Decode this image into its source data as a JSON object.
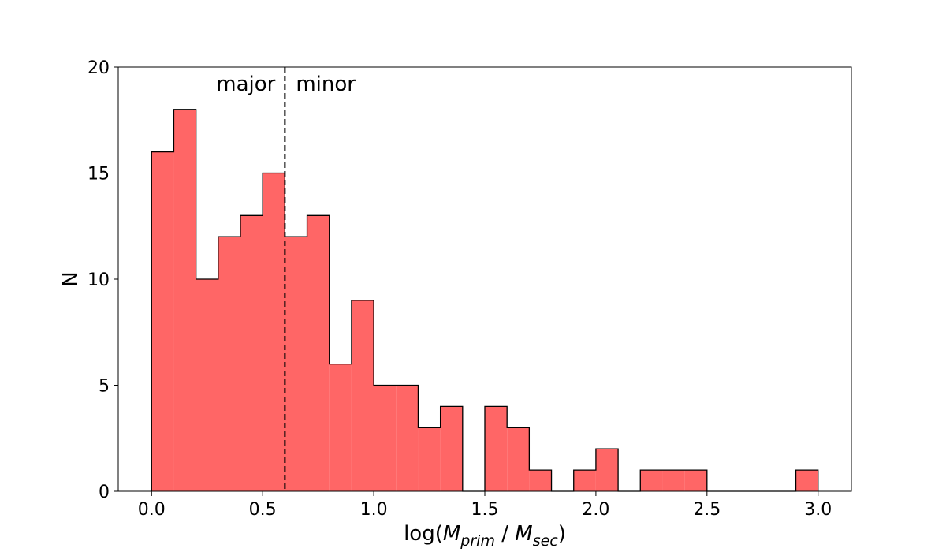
{
  "chart_data": {
    "type": "bar",
    "histogram": true,
    "bin_edges": [
      0.0,
      0.1,
      0.2,
      0.3,
      0.4,
      0.5,
      0.6,
      0.7,
      0.8,
      0.9,
      1.0,
      1.1,
      1.2,
      1.3,
      1.4,
      1.5,
      1.6,
      1.7,
      1.8,
      1.9,
      2.0,
      2.1,
      2.2,
      2.3,
      2.4,
      2.5,
      2.6,
      2.7,
      2.8,
      2.9,
      3.0
    ],
    "values": [
      16,
      18,
      10,
      12,
      13,
      15,
      12,
      13,
      6,
      9,
      5,
      5,
      3,
      4,
      0,
      4,
      3,
      1,
      0,
      1,
      2,
      0,
      1,
      1,
      1,
      0,
      0,
      0,
      0,
      1
    ],
    "xlim": [
      -0.15,
      3.15
    ],
    "ylim": [
      0,
      20
    ],
    "xticks": [
      0.0,
      0.5,
      1.0,
      1.5,
      2.0,
      2.5,
      3.0
    ],
    "xtick_labels": [
      "0.0",
      "0.5",
      "1.0",
      "1.5",
      "2.0",
      "2.5",
      "3.0"
    ],
    "yticks": [
      0,
      5,
      10,
      15,
      20
    ],
    "ytick_labels": [
      "0",
      "5",
      "10",
      "15",
      "20"
    ],
    "xlabel": {
      "prefix": "log(",
      "m1": "M",
      "sub1": "prim",
      "sep": " / ",
      "m2": "M",
      "sub2": "sec",
      "suffix": ")"
    },
    "ylabel": "N",
    "threshold": {
      "x": 0.6,
      "style": "dashed"
    },
    "annotations": {
      "left": "major",
      "right": "minor"
    },
    "fill_color": "#ff6666",
    "edge_color": "#000000",
    "grid": false,
    "legend": false
  }
}
